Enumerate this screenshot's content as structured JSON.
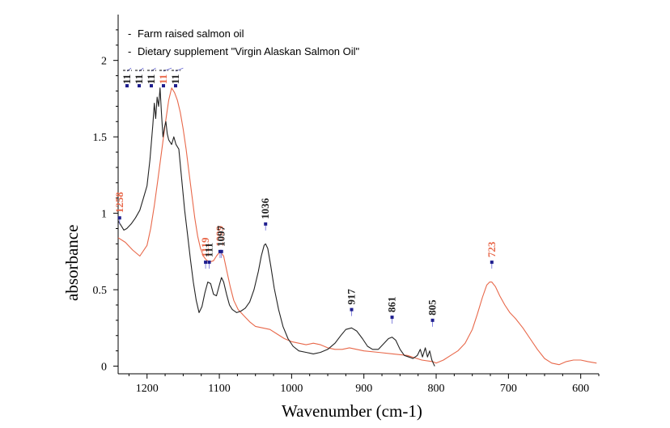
{
  "chart_data": {
    "type": "line",
    "xlabel": "Wavenumber (cm-1)",
    "ylabel": "absorbance",
    "xlim": [
      1240,
      575
    ],
    "ylim": [
      -0.05,
      2.3
    ],
    "x_ticks": [
      "1200",
      "1100",
      "1000",
      "900",
      "800",
      "700",
      "600"
    ],
    "x_tick_values": [
      1200,
      1100,
      1000,
      900,
      800,
      700,
      600
    ],
    "y_ticks": [
      "0",
      "0.5",
      "1",
      "1.5",
      "2"
    ],
    "y_tick_values": [
      0,
      0.5,
      1,
      1.5,
      2
    ],
    "grid": false,
    "legend_position": "top-left",
    "colors": {
      "farm": "#e8684a",
      "supplement": "#222222",
      "marker": "#1f1f8f"
    },
    "series": [
      {
        "name": "Farm raised salmon oil",
        "legend_prefix": "-",
        "color": "#e8684a",
        "points": [
          [
            1240,
            0.84
          ],
          [
            1230,
            0.81
          ],
          [
            1220,
            0.76
          ],
          [
            1210,
            0.72
          ],
          [
            1200,
            0.79
          ],
          [
            1195,
            0.9
          ],
          [
            1190,
            1.05
          ],
          [
            1185,
            1.22
          ],
          [
            1180,
            1.4
          ],
          [
            1175,
            1.58
          ],
          [
            1170,
            1.74
          ],
          [
            1166,
            1.82
          ],
          [
            1162,
            1.79
          ],
          [
            1158,
            1.74
          ],
          [
            1154,
            1.66
          ],
          [
            1150,
            1.55
          ],
          [
            1146,
            1.42
          ],
          [
            1142,
            1.27
          ],
          [
            1138,
            1.12
          ],
          [
            1134,
            0.97
          ],
          [
            1130,
            0.85
          ],
          [
            1126,
            0.77
          ],
          [
            1122,
            0.72
          ],
          [
            1119,
            0.7
          ],
          [
            1114,
            0.68
          ],
          [
            1108,
            0.69
          ],
          [
            1104,
            0.72
          ],
          [
            1099,
            0.75
          ],
          [
            1094,
            0.72
          ],
          [
            1090,
            0.63
          ],
          [
            1085,
            0.52
          ],
          [
            1080,
            0.43
          ],
          [
            1074,
            0.37
          ],
          [
            1066,
            0.33
          ],
          [
            1058,
            0.29
          ],
          [
            1050,
            0.26
          ],
          [
            1040,
            0.25
          ],
          [
            1030,
            0.24
          ],
          [
            1020,
            0.21
          ],
          [
            1010,
            0.18
          ],
          [
            1000,
            0.16
          ],
          [
            990,
            0.15
          ],
          [
            980,
            0.14
          ],
          [
            970,
            0.15
          ],
          [
            960,
            0.14
          ],
          [
            950,
            0.12
          ],
          [
            940,
            0.11
          ],
          [
            930,
            0.11
          ],
          [
            920,
            0.12
          ],
          [
            910,
            0.11
          ],
          [
            900,
            0.1
          ],
          [
            880,
            0.09
          ],
          [
            860,
            0.08
          ],
          [
            840,
            0.07
          ],
          [
            820,
            0.04
          ],
          [
            805,
            0.03
          ],
          [
            800,
            0.02
          ],
          [
            790,
            0.04
          ],
          [
            780,
            0.07
          ],
          [
            770,
            0.1
          ],
          [
            760,
            0.15
          ],
          [
            750,
            0.24
          ],
          [
            743,
            0.34
          ],
          [
            736,
            0.45
          ],
          [
            730,
            0.53
          ],
          [
            726,
            0.55
          ],
          [
            723,
            0.55
          ],
          [
            718,
            0.52
          ],
          [
            712,
            0.46
          ],
          [
            705,
            0.4
          ],
          [
            698,
            0.35
          ],
          [
            690,
            0.31
          ],
          [
            680,
            0.25
          ],
          [
            670,
            0.18
          ],
          [
            660,
            0.11
          ],
          [
            650,
            0.05
          ],
          [
            640,
            0.02
          ],
          [
            630,
            0.01
          ],
          [
            620,
            0.03
          ],
          [
            610,
            0.04
          ],
          [
            600,
            0.04
          ],
          [
            590,
            0.03
          ],
          [
            578,
            0.02
          ]
        ]
      },
      {
        "name": "Dietary supplement  \"Virgin Alaskan Salmon Oil\"",
        "legend_prefix": "-",
        "color": "#222222",
        "points": [
          [
            1240,
            0.95
          ],
          [
            1236,
            0.92
          ],
          [
            1232,
            0.89
          ],
          [
            1228,
            0.9
          ],
          [
            1222,
            0.93
          ],
          [
            1216,
            0.97
          ],
          [
            1210,
            1.02
          ],
          [
            1205,
            1.1
          ],
          [
            1200,
            1.18
          ],
          [
            1196,
            1.35
          ],
          [
            1192,
            1.58
          ],
          [
            1190,
            1.72
          ],
          [
            1188,
            1.62
          ],
          [
            1186,
            1.76
          ],
          [
            1184,
            1.7
          ],
          [
            1182,
            1.82
          ],
          [
            1180,
            1.65
          ],
          [
            1178,
            1.5
          ],
          [
            1176,
            1.56
          ],
          [
            1174,
            1.6
          ],
          [
            1172,
            1.52
          ],
          [
            1170,
            1.48
          ],
          [
            1166,
            1.45
          ],
          [
            1163,
            1.5
          ],
          [
            1160,
            1.45
          ],
          [
            1156,
            1.42
          ],
          [
            1152,
            1.22
          ],
          [
            1148,
            1.02
          ],
          [
            1144,
            0.86
          ],
          [
            1140,
            0.7
          ],
          [
            1136,
            0.55
          ],
          [
            1132,
            0.43
          ],
          [
            1128,
            0.35
          ],
          [
            1124,
            0.39
          ],
          [
            1120,
            0.48
          ],
          [
            1116,
            0.55
          ],
          [
            1112,
            0.54
          ],
          [
            1108,
            0.47
          ],
          [
            1104,
            0.46
          ],
          [
            1100,
            0.53
          ],
          [
            1097,
            0.58
          ],
          [
            1094,
            0.55
          ],
          [
            1090,
            0.47
          ],
          [
            1086,
            0.4
          ],
          [
            1082,
            0.37
          ],
          [
            1076,
            0.35
          ],
          [
            1070,
            0.36
          ],
          [
            1064,
            0.38
          ],
          [
            1058,
            0.42
          ],
          [
            1052,
            0.5
          ],
          [
            1046,
            0.62
          ],
          [
            1042,
            0.72
          ],
          [
            1038,
            0.79
          ],
          [
            1036,
            0.8
          ],
          [
            1033,
            0.77
          ],
          [
            1029,
            0.66
          ],
          [
            1024,
            0.51
          ],
          [
            1018,
            0.37
          ],
          [
            1012,
            0.26
          ],
          [
            1005,
            0.18
          ],
          [
            998,
            0.13
          ],
          [
            990,
            0.1
          ],
          [
            980,
            0.09
          ],
          [
            970,
            0.08
          ],
          [
            960,
            0.09
          ],
          [
            950,
            0.11
          ],
          [
            940,
            0.15
          ],
          [
            932,
            0.2
          ],
          [
            925,
            0.24
          ],
          [
            917,
            0.25
          ],
          [
            910,
            0.23
          ],
          [
            902,
            0.18
          ],
          [
            895,
            0.13
          ],
          [
            888,
            0.11
          ],
          [
            880,
            0.11
          ],
          [
            872,
            0.15
          ],
          [
            866,
            0.18
          ],
          [
            861,
            0.19
          ],
          [
            856,
            0.17
          ],
          [
            850,
            0.11
          ],
          [
            844,
            0.07
          ],
          [
            838,
            0.06
          ],
          [
            832,
            0.05
          ],
          [
            826,
            0.07
          ],
          [
            822,
            0.11
          ],
          [
            819,
            0.06
          ],
          [
            815,
            0.12
          ],
          [
            812,
            0.06
          ],
          [
            809,
            0.1
          ],
          [
            806,
            0.04
          ],
          [
            804,
            0.02
          ],
          [
            802,
            0.0
          ]
        ]
      }
    ],
    "peak_labels": [
      {
        "text": "1258",
        "series": 0,
        "x": 1238,
        "y": 0.97,
        "label_rotation": -90
      },
      {
        "text": "1119",
        "series": 0,
        "x": 1119,
        "y": 0.68,
        "label_rotation": -90
      },
      {
        "text": "1099",
        "series": 0,
        "x": 1099,
        "y": 0.75,
        "label_rotation": -90
      },
      {
        "text": "723",
        "series": 0,
        "x": 723,
        "y": 0.68,
        "label_rotation": -90
      },
      {
        "text": "111",
        "series": 1,
        "x": 1114,
        "y": 0.68,
        "label_rotation": -90
      },
      {
        "text": "1097",
        "series": 1,
        "x": 1097,
        "y": 0.75,
        "label_rotation": -90
      },
      {
        "text": "1036",
        "series": 1,
        "x": 1036,
        "y": 0.93,
        "label_rotation": -90
      },
      {
        "text": "917",
        "series": 1,
        "x": 917,
        "y": 0.37,
        "label_rotation": -90
      },
      {
        "text": "861",
        "series": 1,
        "x": 861,
        "y": 0.32,
        "label_rotation": -90
      },
      {
        "text": "805",
        "series": 1,
        "x": 805,
        "y": 0.3,
        "label_rotation": -90
      }
    ],
    "crowded_labels": [
      {
        "text": "11",
        "series": 1,
        "x": 1222,
        "y": 1.95
      },
      {
        "text": "11",
        "series": 1,
        "x": 1205,
        "y": 1.95
      },
      {
        "text": "11",
        "series": 1,
        "x": 1188,
        "y": 1.95
      },
      {
        "text": "11",
        "series": 0,
        "x": 1166,
        "y": 1.95
      },
      {
        "text": "11",
        "series": 1,
        "x": 1150,
        "y": 1.95
      }
    ]
  }
}
